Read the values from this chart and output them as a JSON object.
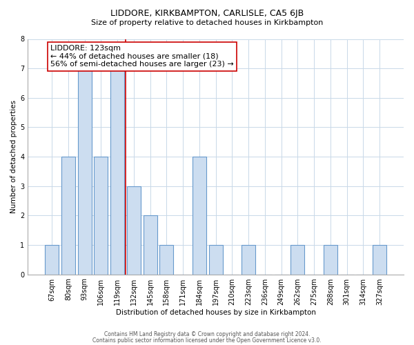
{
  "title": "LIDDORE, KIRKBAMPTON, CARLISLE, CA5 6JB",
  "subtitle": "Size of property relative to detached houses in Kirkbampton",
  "xlabel": "Distribution of detached houses by size in Kirkbampton",
  "ylabel": "Number of detached properties",
  "bar_labels": [
    "67sqm",
    "80sqm",
    "93sqm",
    "106sqm",
    "119sqm",
    "132sqm",
    "145sqm",
    "158sqm",
    "171sqm",
    "184sqm",
    "197sqm",
    "210sqm",
    "223sqm",
    "236sqm",
    "249sqm",
    "262sqm",
    "275sqm",
    "288sqm",
    "301sqm",
    "314sqm",
    "327sqm"
  ],
  "bar_values": [
    1,
    4,
    7,
    4,
    7,
    3,
    2,
    1,
    0,
    4,
    1,
    0,
    1,
    0,
    0,
    1,
    0,
    1,
    0,
    0,
    1
  ],
  "bar_fill_color": "#ccddf0",
  "bar_edge_color": "#6699cc",
  "marker_line_index": 4,
  "marker_line_color": "#cc0000",
  "ylim": [
    0,
    8
  ],
  "yticks": [
    0,
    1,
    2,
    3,
    4,
    5,
    6,
    7,
    8
  ],
  "annotation_title": "LIDDORE: 123sqm",
  "annotation_line1": "← 44% of detached houses are smaller (18)",
  "annotation_line2": "56% of semi-detached houses are larger (23) →",
  "footer1": "Contains HM Land Registry data © Crown copyright and database right 2024.",
  "footer2": "Contains public sector information licensed under the Open Government Licence v3.0.",
  "background_color": "#ffffff",
  "grid_color": "#c8d8e8",
  "title_fontsize": 9,
  "subtitle_fontsize": 8,
  "annot_fontsize": 8,
  "axis_fontsize": 7.5,
  "tick_fontsize": 7,
  "footer_fontsize": 5.5
}
